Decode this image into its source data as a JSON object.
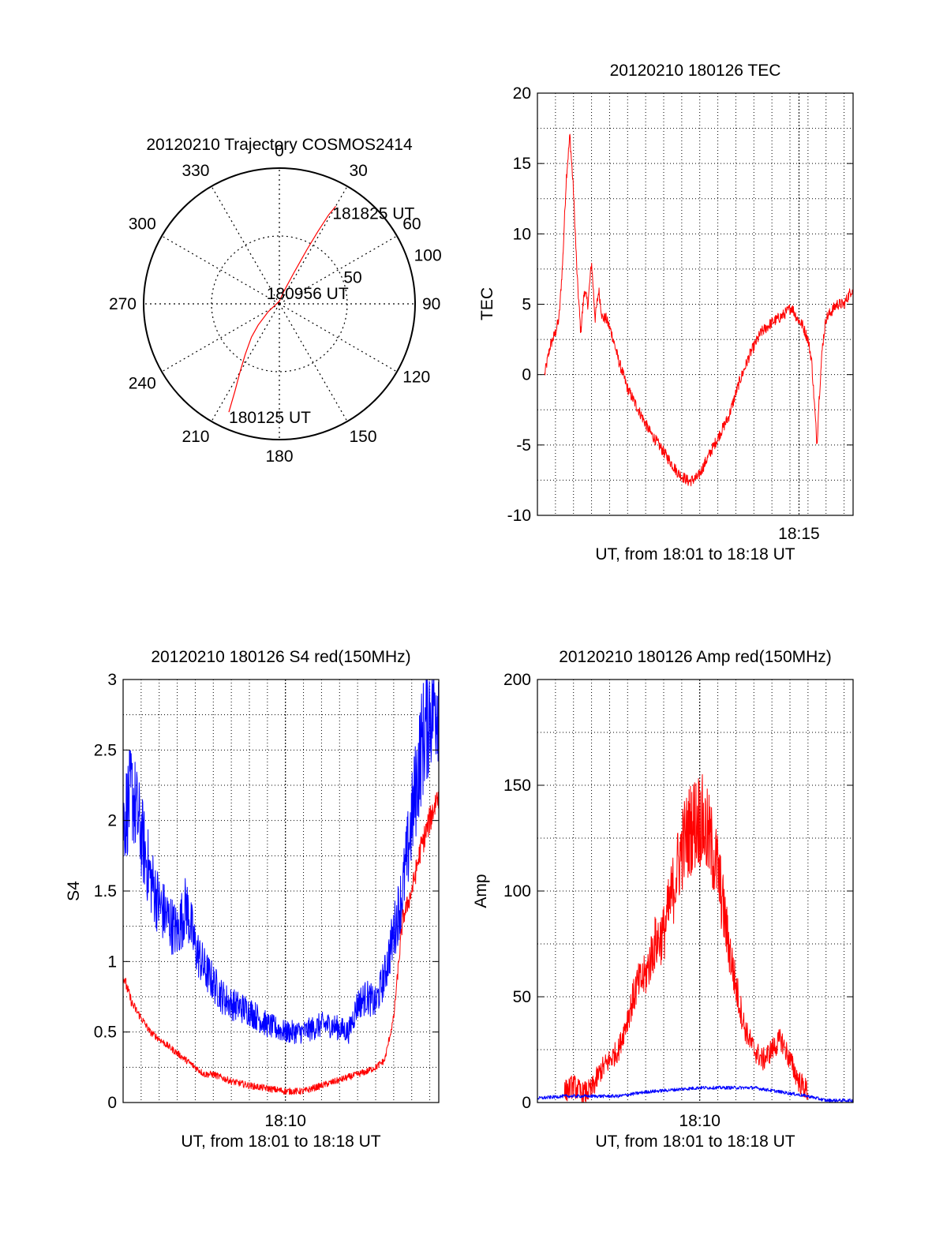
{
  "figure": {
    "background": "#ffffff",
    "trace_red": "#ff0000",
    "trace_blue": "#0000ff"
  },
  "chart_data": [
    {
      "id": "polar",
      "type": "polar-trajectory",
      "title": "20120210 Trajectory COSMOS2414",
      "angle_labels": [
        "0",
        "30",
        "60",
        "90",
        "120",
        "150",
        "180",
        "210",
        "240",
        "270",
        "300",
        "330"
      ],
      "radial_labels": [
        "50",
        "100"
      ],
      "rlim": [
        0,
        100
      ],
      "grid": true,
      "series": [
        {
          "color": "#ff0000",
          "points": [
            [
              205,
              88
            ],
            [
              207,
              72
            ],
            [
              210,
              58
            ],
            [
              214,
              45
            ],
            [
              220,
              32
            ],
            [
              225,
              22
            ],
            [
              235,
              10
            ],
            [
              0,
              2
            ],
            [
              20,
              10
            ],
            [
              25,
              25
            ],
            [
              27,
              45
            ],
            [
              28,
              60
            ],
            [
              29,
              75
            ],
            [
              30,
              83
            ]
          ]
        }
      ],
      "annotations": [
        {
          "text": "181825 UT",
          "az": 30,
          "r": 83
        },
        {
          "text": "180956 UT",
          "az": 90,
          "r": 8
        },
        {
          "text": "180125 UT",
          "az": 205,
          "r": 88
        }
      ]
    },
    {
      "id": "tec",
      "type": "line",
      "title": "20120210 180126 TEC",
      "ylabel": "TEC",
      "xlabel": "UT, from 18:01 to 18:18 UT",
      "xlim": [
        0,
        17.5
      ],
      "ylim": [
        -10,
        20
      ],
      "yticks": [
        -10,
        -5,
        0,
        5,
        10,
        15,
        20
      ],
      "xtick_labels": [
        {
          "x": 14.5,
          "label": "18:15"
        }
      ],
      "grid": true,
      "series": [
        {
          "color": "#ff0000",
          "noise": 0.4,
          "x": [
            0.4,
            0.7,
            1.0,
            1.2,
            1.4,
            1.6,
            1.8,
            2.0,
            2.2,
            2.4,
            2.6,
            2.8,
            3.0,
            3.2,
            3.4,
            3.6,
            3.8,
            4.1,
            4.5,
            5.0,
            5.6,
            6.2,
            7.0,
            7.8,
            8.4,
            8.9,
            9.4,
            10.0,
            10.6,
            11.2,
            11.8,
            12.4,
            13.0,
            13.6,
            14.1,
            14.4,
            14.7,
            15.0,
            15.2,
            15.4,
            15.5,
            15.6,
            15.8,
            16.0,
            16.3,
            16.6,
            17.0,
            17.4,
            17.5
          ],
          "y": [
            0,
            2,
            3,
            4,
            8,
            14,
            17,
            13,
            7,
            3,
            6,
            5,
            8,
            4,
            6,
            4,
            4,
            3,
            1,
            -1,
            -2.5,
            -4,
            -5.5,
            -7,
            -7.6,
            -7.3,
            -6,
            -4.5,
            -3,
            -0.5,
            1.5,
            3,
            3.7,
            4.2,
            4.8,
            4,
            3.5,
            2.5,
            1,
            -3,
            -5,
            -2,
            2,
            4,
            4.5,
            5,
            5,
            6,
            6
          ]
        }
      ]
    },
    {
      "id": "s4",
      "type": "line",
      "title": "20120210 180126 S4 red(150MHz)",
      "ylabel": "S4",
      "xlabel": "UT, from 18:01 to 18:18 UT",
      "xlim": [
        0,
        17.5
      ],
      "ylim": [
        0,
        3
      ],
      "yticks": [
        0,
        0.5,
        1,
        1.5,
        2,
        2.5,
        3
      ],
      "ytick_labels": [
        "0",
        "0.5",
        "1",
        "1.5",
        "2",
        "2.5",
        "3"
      ],
      "xtick_labels": [
        {
          "x": 9.0,
          "label": "18:10"
        }
      ],
      "grid": true,
      "series": [
        {
          "color": "#0000ff",
          "noise": 0.2,
          "x": [
            0,
            0.5,
            1.0,
            1.5,
            2.0,
            2.5,
            3.0,
            3.5,
            4.0,
            4.5,
            5.0,
            5.5,
            6.0,
            7.0,
            8.0,
            9.0,
            10.0,
            11.0,
            11.5,
            12.5,
            13.0,
            13.5,
            14.0,
            14.5,
            15.0,
            15.5,
            16.0,
            16.5,
            17.0,
            17.5
          ],
          "y": [
            2.0,
            2.2,
            1.9,
            1.6,
            1.4,
            1.3,
            1.2,
            1.4,
            1.1,
            0.95,
            0.85,
            0.75,
            0.7,
            0.65,
            0.55,
            0.5,
            0.5,
            0.55,
            0.55,
            0.5,
            0.7,
            0.75,
            0.7,
            0.9,
            1.2,
            1.5,
            2.0,
            2.5,
            2.8,
            2.9
          ]
        },
        {
          "color": "#ff0000",
          "noise": 0.06,
          "x": [
            0,
            0.5,
            1.0,
            1.5,
            2.0,
            2.5,
            3.0,
            3.5,
            4.0,
            4.5,
            5.0,
            6.0,
            7.0,
            8.0,
            9.0,
            10.0,
            11.0,
            12.0,
            13.0,
            13.5,
            14.0,
            14.5,
            15.0,
            15.5,
            16.0,
            16.5,
            17.0,
            17.5
          ],
          "y": [
            0.9,
            0.7,
            0.6,
            0.5,
            0.45,
            0.4,
            0.35,
            0.3,
            0.25,
            0.2,
            0.2,
            0.15,
            0.12,
            0.1,
            0.08,
            0.08,
            0.12,
            0.16,
            0.2,
            0.22,
            0.25,
            0.3,
            0.6,
            1.3,
            1.5,
            1.8,
            2.0,
            2.2
          ]
        }
      ]
    },
    {
      "id": "amp",
      "type": "line",
      "title": "20120210 180126 Amp red(150MHz)",
      "ylabel": "Amp",
      "xlabel": "UT, from 18:01 to 18:18 UT",
      "xlim": [
        0,
        17.5
      ],
      "ylim": [
        0,
        200
      ],
      "yticks": [
        0,
        50,
        100,
        150,
        200
      ],
      "ytick_labels": [
        "0",
        "50",
        "100",
        "150",
        "200"
      ],
      "xtick_labels": [
        {
          "x": 9.0,
          "label": "18:10"
        }
      ],
      "grid": true,
      "series": [
        {
          "color": "#ff0000",
          "noise": 14,
          "x": [
            1.5,
            2.0,
            2.5,
            3.0,
            3.5,
            4.0,
            4.5,
            5.0,
            5.5,
            6.0,
            6.5,
            7.0,
            7.5,
            8.0,
            8.5,
            9.0,
            9.5,
            10.0,
            10.5,
            11.0,
            11.5,
            12.0,
            12.5,
            13.0,
            13.5,
            14.0,
            14.5,
            15.0
          ],
          "y": [
            5,
            8,
            4,
            6,
            15,
            20,
            25,
            40,
            55,
            60,
            75,
            80,
            100,
            120,
            130,
            135,
            125,
            110,
            80,
            55,
            35,
            25,
            20,
            25,
            30,
            20,
            10,
            5
          ]
        },
        {
          "color": "#0000ff",
          "noise": 2,
          "x": [
            0,
            1.5,
            3.0,
            4.5,
            6.0,
            7.5,
            9.0,
            10.5,
            12.0,
            13.5,
            15.0,
            16.0,
            17.5
          ],
          "y": [
            2,
            3,
            3,
            3,
            5,
            6,
            7,
            7,
            7,
            5,
            3,
            1,
            1
          ]
        }
      ]
    }
  ]
}
